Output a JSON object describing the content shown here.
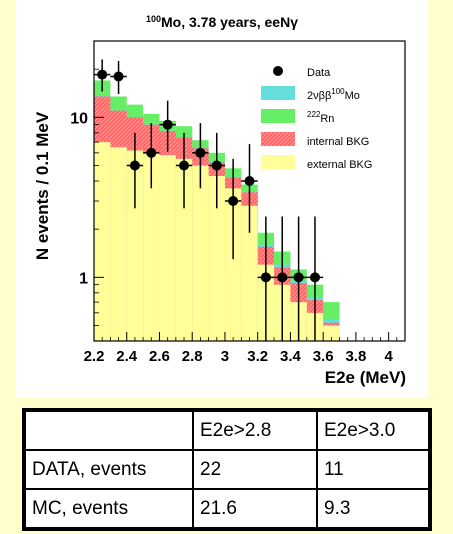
{
  "chart_data": {
    "type": "histogram",
    "title_sup": "100",
    "title_main": "Mo, 3.78 years, eeNγ",
    "ylabel": "N events / 0.1 MeV",
    "xlabel": "E2e (MeV)",
    "yscale": "log",
    "xlim": [
      2.2,
      4.1
    ],
    "ylim": [
      0.4,
      30
    ],
    "x_ticks": [
      "2.2",
      "2.4",
      "2.6",
      "2.8",
      "3",
      "3.2",
      "3.4",
      "3.6",
      "3.8",
      "4"
    ],
    "x_tick_values": [
      2.2,
      2.4,
      2.6,
      2.8,
      3.0,
      3.2,
      3.4,
      3.6,
      3.8,
      4.0
    ],
    "y_ticks": [
      "1",
      "10"
    ],
    "y_tick_values": [
      1,
      10
    ],
    "bin_edges": [
      2.2,
      2.3,
      2.4,
      2.5,
      2.6,
      2.7,
      2.8,
      2.9,
      3.0,
      3.1,
      3.2,
      3.3,
      3.4,
      3.5,
      3.6,
      3.7
    ],
    "stack": [
      {
        "name": "external BKG",
        "color": "#ffff99",
        "values": [
          7.0,
          6.5,
          6.2,
          6.0,
          5.8,
          5.5,
          5.0,
          4.3,
          3.6,
          2.8,
          1.2,
          0.9,
          0.7,
          0.6,
          0.5
        ]
      },
      {
        "name": "internal BKG",
        "color": "#ff6666",
        "values": [
          13.5,
          11.0,
          10.0,
          9.0,
          8.2,
          7.5,
          6.4,
          5.2,
          4.2,
          3.4,
          1.55,
          1.15,
          0.92,
          0.72,
          0.52
        ]
      },
      {
        "name": "2νββ 100Mo",
        "color": "#66dddd",
        "values": [
          13.6,
          11.05,
          10.05,
          9.05,
          8.25,
          7.55,
          6.45,
          5.25,
          4.25,
          3.45,
          1.6,
          1.2,
          0.95,
          0.75,
          0.55
        ]
      },
      {
        "name": "222Rn",
        "color": "#66ee66",
        "values": [
          17.0,
          13.5,
          12.0,
          10.5,
          9.5,
          8.8,
          7.2,
          6.0,
          4.8,
          3.8,
          1.9,
          1.45,
          1.12,
          0.9,
          0.7
        ]
      }
    ],
    "data_points": [
      {
        "x": 2.25,
        "y": 18.5,
        "lo": 14.5,
        "hi": 23.0
      },
      {
        "x": 2.35,
        "y": 18.0,
        "lo": 14.0,
        "hi": 22.5
      },
      {
        "x": 2.45,
        "y": 5.0,
        "lo": 2.7,
        "hi": 8.0
      },
      {
        "x": 2.55,
        "y": 6.0,
        "lo": 3.6,
        "hi": 9.2
      },
      {
        "x": 2.65,
        "y": 9.0,
        "lo": 6.1,
        "hi": 12.7
      },
      {
        "x": 2.75,
        "y": 5.0,
        "lo": 2.7,
        "hi": 8.0
      },
      {
        "x": 2.85,
        "y": 6.0,
        "lo": 3.6,
        "hi": 9.2
      },
      {
        "x": 2.95,
        "y": 5.0,
        "lo": 2.7,
        "hi": 8.0
      },
      {
        "x": 3.05,
        "y": 3.0,
        "lo": 1.3,
        "hi": 5.5
      },
      {
        "x": 3.15,
        "y": 4.0,
        "lo": 1.9,
        "hi": 6.8
      },
      {
        "x": 3.25,
        "y": 1.0,
        "lo": 0.4,
        "hi": 2.4
      },
      {
        "x": 3.35,
        "y": 1.0,
        "lo": 0.4,
        "hi": 2.4
      },
      {
        "x": 3.45,
        "y": 1.0,
        "lo": 0.4,
        "hi": 2.4
      },
      {
        "x": 3.55,
        "y": 1.0,
        "lo": 0.4,
        "hi": 2.4
      }
    ],
    "legend": [
      {
        "kind": "marker",
        "label": "Data"
      },
      {
        "kind": "box",
        "color": "#66dddd",
        "label_pre": "2νββ",
        "label_sup": "100",
        "label_post": "Mo"
      },
      {
        "kind": "box",
        "color": "#66ee66",
        "label_pre": "",
        "label_sup": "222",
        "label_post": "Rn"
      },
      {
        "kind": "box",
        "color": "#ff6666",
        "label_pre": "internal BKG",
        "label_sup": "",
        "label_post": ""
      },
      {
        "kind": "box",
        "color": "#ffff99",
        "label_pre": "external BKG",
        "label_sup": "",
        "label_post": ""
      }
    ],
    "legend_position": "top-right"
  },
  "table": {
    "header": [
      "",
      "E2e>2.8",
      "E2e>3.0"
    ],
    "rows": [
      [
        "DATA, events",
        "22",
        "11"
      ],
      [
        "MC, events",
        "21.6",
        "9.3"
      ]
    ]
  }
}
